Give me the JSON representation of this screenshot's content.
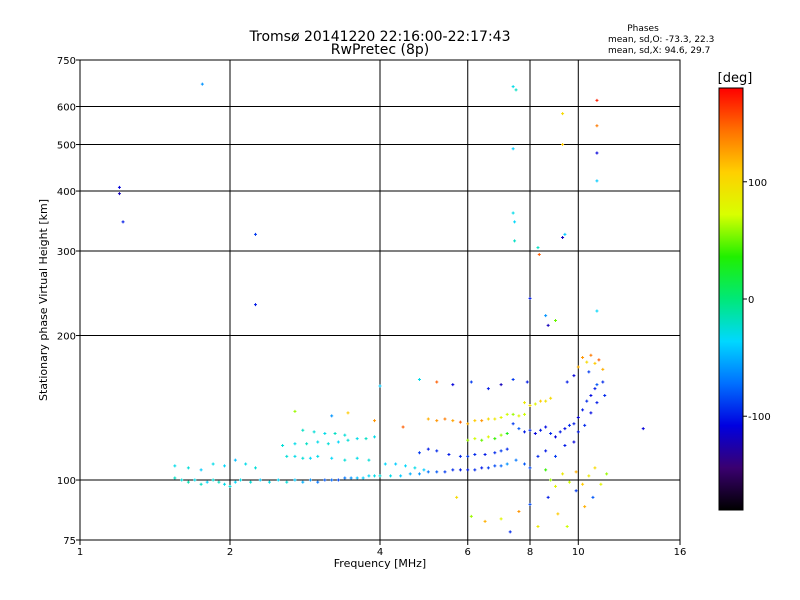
{
  "chart_data": {
    "type": "scatter",
    "title": "Tromsø 20141220 22:16:00-22:17:43",
    "subtitle": "RwPretec (8p)",
    "xlabel": "Frequency [MHz]",
    "ylabel": "Stationary phase Virtual Height [km]",
    "x_scale": "log",
    "y_scale": "log",
    "xlim": [
      1,
      16
    ],
    "ylim": [
      75,
      750
    ],
    "x_ticks": [
      1,
      2,
      4,
      6,
      8,
      10,
      16
    ],
    "y_ticks": [
      75,
      100,
      200,
      300,
      400,
      500,
      600,
      750
    ],
    "grid": true,
    "legend": {
      "title": "Phases",
      "line1": "mean, sd,O: -73.3, 22.3",
      "line2": "mean, sd,X:  94.6, 29.7"
    },
    "colorbar": {
      "label": "[deg]",
      "range": [
        -180,
        180
      ],
      "ticks": [
        100,
        0,
        -100
      ],
      "colors": [
        "#000000",
        "#3a0070",
        "#0000e0",
        "#0070ff",
        "#00d8ff",
        "#00e878",
        "#20f000",
        "#d8ff00",
        "#ffd000",
        "#ff7000",
        "#ff0000"
      ]
    },
    "series": [
      {
        "points": [
          [
            1.55,
            101,
            -20
          ],
          [
            1.6,
            100,
            -25
          ],
          [
            1.65,
            99,
            -15
          ],
          [
            1.7,
            100,
            -30
          ],
          [
            1.75,
            98,
            -20
          ],
          [
            1.8,
            99,
            -35
          ],
          [
            1.85,
            100,
            -25
          ],
          [
            1.9,
            99,
            -20
          ],
          [
            1.95,
            98,
            -30
          ],
          [
            2.0,
            97,
            -25
          ],
          [
            2.05,
            99,
            -35
          ],
          [
            2.1,
            100,
            -30
          ],
          [
            2.2,
            99,
            -25
          ],
          [
            2.3,
            100,
            -40
          ],
          [
            2.4,
            99,
            -30
          ],
          [
            2.5,
            100,
            -35
          ],
          [
            2.6,
            99,
            -25
          ],
          [
            2.7,
            100,
            -40
          ],
          [
            2.8,
            99,
            -50
          ],
          [
            2.9,
            100,
            -60
          ],
          [
            3.0,
            99,
            -70
          ],
          [
            3.1,
            100,
            -80
          ],
          [
            3.2,
            100,
            -75
          ],
          [
            3.3,
            100,
            -85
          ],
          [
            3.4,
            101,
            -70
          ],
          [
            3.5,
            101,
            -60
          ],
          [
            3.6,
            101,
            -45
          ],
          [
            3.7,
            101,
            -40
          ],
          [
            3.8,
            102,
            -35
          ],
          [
            3.9,
            102,
            -30
          ],
          [
            4.0,
            102,
            -25
          ],
          [
            4.2,
            102,
            -30
          ],
          [
            4.4,
            102,
            -40
          ],
          [
            4.6,
            103,
            -50
          ],
          [
            4.8,
            103,
            -60
          ],
          [
            5.0,
            104,
            -70
          ],
          [
            5.2,
            104,
            -80
          ],
          [
            5.4,
            104,
            -90
          ],
          [
            5.6,
            105,
            -95
          ],
          [
            5.8,
            105,
            -100
          ],
          [
            6.0,
            105,
            -100
          ],
          [
            6.2,
            105,
            -95
          ],
          [
            6.4,
            106,
            -100
          ],
          [
            6.6,
            106,
            -90
          ],
          [
            6.8,
            107,
            -85
          ],
          [
            7.0,
            107,
            -75
          ],
          [
            7.2,
            108,
            -60
          ]
        ]
      },
      {
        "points": [
          [
            1.55,
            107,
            -30
          ],
          [
            1.65,
            106,
            -25
          ],
          [
            1.75,
            105,
            -40
          ],
          [
            1.85,
            108,
            -30
          ],
          [
            1.95,
            107,
            -35
          ],
          [
            2.05,
            110,
            -45
          ],
          [
            2.15,
            108,
            -30
          ],
          [
            2.25,
            106,
            -25
          ]
        ]
      },
      {
        "points": [
          [
            2.6,
            112,
            -25
          ],
          [
            2.7,
            112,
            -30
          ],
          [
            2.8,
            111,
            -25
          ],
          [
            2.9,
            111,
            -35
          ],
          [
            3.0,
            112,
            -30
          ],
          [
            3.2,
            111,
            -35
          ],
          [
            3.4,
            110,
            -25
          ],
          [
            3.6,
            111,
            -30
          ],
          [
            3.8,
            110,
            -25
          ]
        ]
      },
      {
        "points": [
          [
            2.55,
            118,
            -25
          ],
          [
            2.7,
            119,
            -30
          ],
          [
            2.85,
            119,
            -20
          ],
          [
            3.0,
            120,
            -30
          ],
          [
            3.15,
            119,
            -25
          ],
          [
            3.3,
            120,
            -35
          ],
          [
            3.45,
            121,
            -25
          ],
          [
            3.6,
            122,
            -30
          ],
          [
            3.75,
            122,
            -20
          ],
          [
            3.9,
            123,
            -30
          ]
        ]
      },
      {
        "points": [
          [
            2.8,
            127,
            -20
          ],
          [
            2.95,
            126,
            -25
          ],
          [
            3.1,
            125,
            -30
          ],
          [
            3.25,
            125,
            -20
          ],
          [
            3.4,
            124,
            -25
          ]
        ]
      },
      {
        "points": [
          [
            4.1,
            108,
            -35
          ],
          [
            4.3,
            108,
            -40
          ],
          [
            4.5,
            107,
            -35
          ],
          [
            4.7,
            106,
            -30
          ],
          [
            4.9,
            105,
            -40
          ]
        ]
      },
      {
        "points": [
          [
            4.8,
            114,
            -90
          ],
          [
            5.0,
            116,
            -100
          ],
          [
            5.2,
            115,
            -95
          ],
          [
            5.5,
            113,
            -100
          ],
          [
            5.8,
            112,
            -95
          ],
          [
            6.0,
            112,
            -90
          ],
          [
            6.2,
            113,
            -95
          ],
          [
            6.5,
            113,
            -100
          ],
          [
            6.8,
            114,
            -95
          ],
          [
            7.0,
            115,
            -90
          ],
          [
            7.2,
            116,
            -95
          ]
        ]
      },
      {
        "points": [
          [
            5.0,
            134,
            120
          ],
          [
            5.2,
            133,
            130
          ],
          [
            5.4,
            134,
            140
          ],
          [
            5.6,
            133,
            125
          ],
          [
            5.8,
            132,
            150
          ],
          [
            6.0,
            131,
            120
          ],
          [
            6.2,
            133,
            110
          ],
          [
            6.4,
            133,
            130
          ],
          [
            6.6,
            134,
            100
          ],
          [
            6.8,
            134,
            90
          ],
          [
            7.0,
            135,
            80
          ],
          [
            7.2,
            137,
            70
          ],
          [
            7.4,
            137,
            60
          ],
          [
            7.6,
            136,
            80
          ],
          [
            7.8,
            137,
            70
          ]
        ]
      },
      {
        "points": [
          [
            6.0,
            121,
            60
          ],
          [
            6.2,
            122,
            70
          ],
          [
            6.4,
            121,
            50
          ],
          [
            6.6,
            123,
            80
          ],
          [
            6.8,
            122,
            40
          ],
          [
            7.0,
            124,
            60
          ],
          [
            7.2,
            125,
            30
          ]
        ]
      },
      {
        "points": [
          [
            7.4,
            131,
            -90
          ],
          [
            7.6,
            128,
            -80
          ],
          [
            7.8,
            126,
            -100
          ],
          [
            8.0,
            127,
            -95
          ],
          [
            8.2,
            125,
            -110
          ],
          [
            8.4,
            127,
            -100
          ],
          [
            8.6,
            129,
            -105
          ],
          [
            8.8,
            125,
            -95
          ],
          [
            9.0,
            123,
            -110
          ],
          [
            9.2,
            126,
            -100
          ],
          [
            9.4,
            128,
            -105
          ],
          [
            9.6,
            130,
            -95
          ],
          [
            9.8,
            131,
            -100
          ],
          [
            10.0,
            135,
            -110
          ],
          [
            10.2,
            140,
            -100
          ],
          [
            10.4,
            146,
            -95
          ],
          [
            10.6,
            150,
            -105
          ],
          [
            10.8,
            155,
            -100
          ]
        ]
      },
      {
        "points": [
          [
            7.8,
            145,
            90
          ],
          [
            8.0,
            143,
            100
          ],
          [
            8.2,
            144,
            80
          ],
          [
            8.4,
            146,
            110
          ],
          [
            8.6,
            146,
            95
          ],
          [
            8.8,
            148,
            100
          ]
        ]
      },
      {
        "points": [
          [
            7.5,
            110,
            -70
          ],
          [
            7.8,
            108,
            -80
          ],
          [
            8.0,
            106,
            -85
          ],
          [
            8.3,
            112,
            -95
          ],
          [
            8.6,
            115,
            -100
          ],
          [
            9.0,
            112,
            -90
          ],
          [
            9.4,
            118,
            -100
          ],
          [
            9.8,
            120,
            -110
          ],
          [
            10.0,
            126,
            -100
          ],
          [
            10.3,
            130,
            -95
          ],
          [
            10.6,
            138,
            -105
          ],
          [
            10.9,
            145,
            -100
          ],
          [
            11.2,
            160,
            -95
          ]
        ]
      },
      {
        "points": [
          [
            9.5,
            160,
            -100
          ],
          [
            9.8,
            165,
            -110
          ],
          [
            10.0,
            172,
            120
          ],
          [
            10.2,
            180,
            130
          ],
          [
            10.4,
            176,
            100
          ],
          [
            10.6,
            182,
            140
          ],
          [
            10.8,
            175,
            110
          ],
          [
            11.0,
            178,
            150
          ],
          [
            11.2,
            170,
            120
          ],
          [
            10.5,
            168,
            -90
          ],
          [
            10.9,
            158,
            -80
          ],
          [
            11.3,
            150,
            -95
          ]
        ]
      },
      {
        "points": [
          [
            8.6,
            105,
            40
          ],
          [
            8.8,
            100,
            60
          ],
          [
            9.0,
            97,
            80
          ],
          [
            9.3,
            103,
            90
          ],
          [
            9.6,
            99,
            70
          ],
          [
            9.9,
            104,
            120
          ],
          [
            10.2,
            98,
            110
          ],
          [
            10.5,
            102,
            90
          ],
          [
            10.8,
            106,
            100
          ],
          [
            11.1,
            98,
            80
          ],
          [
            11.4,
            103,
            60
          ]
        ]
      },
      {
        "points": [
          [
            5.7,
            92,
            100
          ],
          [
            6.1,
            84,
            60
          ],
          [
            6.5,
            82,
            120
          ],
          [
            7.0,
            83,
            80
          ],
          [
            7.3,
            78,
            -95
          ],
          [
            7.6,
            86,
            130
          ],
          [
            8.0,
            89,
            -85
          ],
          [
            8.3,
            80,
            90
          ],
          [
            8.7,
            92,
            -100
          ],
          [
            9.1,
            85,
            110
          ],
          [
            9.5,
            80,
            70
          ],
          [
            9.9,
            95,
            -90
          ],
          [
            10.3,
            88,
            120
          ],
          [
            10.7,
            92,
            -80
          ]
        ]
      },
      {
        "points": [
          [
            2.7,
            139,
            60
          ],
          [
            3.2,
            136,
            -60
          ],
          [
            3.45,
            138,
            110
          ],
          [
            3.9,
            133,
            130
          ],
          [
            4.0,
            157,
            -40
          ],
          [
            4.45,
            129,
            150
          ],
          [
            4.8,
            162,
            -30
          ],
          [
            5.2,
            160,
            150
          ],
          [
            5.6,
            158,
            -110
          ],
          [
            6.1,
            160,
            -90
          ],
          [
            6.6,
            155,
            -100
          ],
          [
            7.0,
            158,
            -120
          ],
          [
            7.4,
            162,
            -90
          ],
          [
            7.9,
            160,
            -100
          ]
        ]
      },
      {
        "points": [
          [
            1.2,
            407,
            -110
          ],
          [
            1.2,
            395,
            -120
          ],
          [
            1.22,
            345,
            -100
          ],
          [
            1.76,
            668,
            -60
          ],
          [
            2.25,
            325,
            -90
          ],
          [
            2.25,
            232,
            -100
          ],
          [
            7.4,
            660,
            -30
          ],
          [
            7.5,
            650,
            -20
          ],
          [
            7.4,
            490,
            -40
          ],
          [
            7.4,
            360,
            -30
          ],
          [
            7.45,
            345,
            -35
          ],
          [
            7.45,
            315,
            -20
          ],
          [
            8.0,
            239,
            -100
          ],
          [
            8.3,
            305,
            -20
          ],
          [
            8.6,
            220,
            -60
          ],
          [
            8.7,
            210,
            -120
          ],
          [
            8.35,
            295,
            150
          ],
          [
            9.3,
            580,
            100
          ],
          [
            9.3,
            500,
            110
          ],
          [
            9.4,
            325,
            -40
          ],
          [
            9.3,
            320,
            -120
          ],
          [
            9.0,
            215,
            50
          ],
          [
            10.9,
            618,
            170
          ],
          [
            10.9,
            547,
            140
          ],
          [
            10.9,
            480,
            -110
          ],
          [
            10.9,
            420,
            -40
          ],
          [
            10.9,
            225,
            -35
          ],
          [
            13.5,
            128,
            -110
          ]
        ]
      }
    ]
  }
}
